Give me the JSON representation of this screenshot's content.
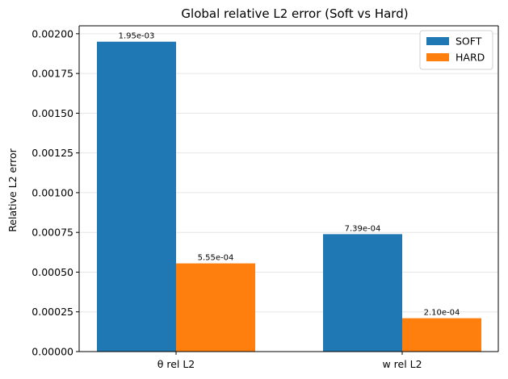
{
  "chart_data": {
    "type": "bar",
    "title": "Global relative L2 error (Soft vs Hard)",
    "xlabel": "",
    "ylabel": "Relative L2 error",
    "categories": [
      "θ rel L2",
      "w rel L2"
    ],
    "series": [
      {
        "name": "SOFT",
        "color": "#1f77b4",
        "values": [
          0.00195,
          0.000739
        ],
        "labels": [
          "1.95e-03",
          "7.39e-04"
        ]
      },
      {
        "name": "HARD",
        "color": "#ff7f0e",
        "values": [
          0.000555,
          0.00021
        ],
        "labels": [
          "5.55e-04",
          "2.10e-04"
        ]
      }
    ],
    "ylim": [
      0,
      0.00205
    ],
    "yticks": [
      0,
      0.00025,
      0.0005,
      0.00075,
      0.001,
      0.00125,
      0.0015,
      0.00175,
      0.002
    ],
    "ytick_labels": [
      "0.00000",
      "0.00025",
      "0.00050",
      "0.00075",
      "0.00100",
      "0.00125",
      "0.00150",
      "0.00175",
      "0.00200"
    ],
    "grid": "y",
    "legend_position": "top-right"
  }
}
